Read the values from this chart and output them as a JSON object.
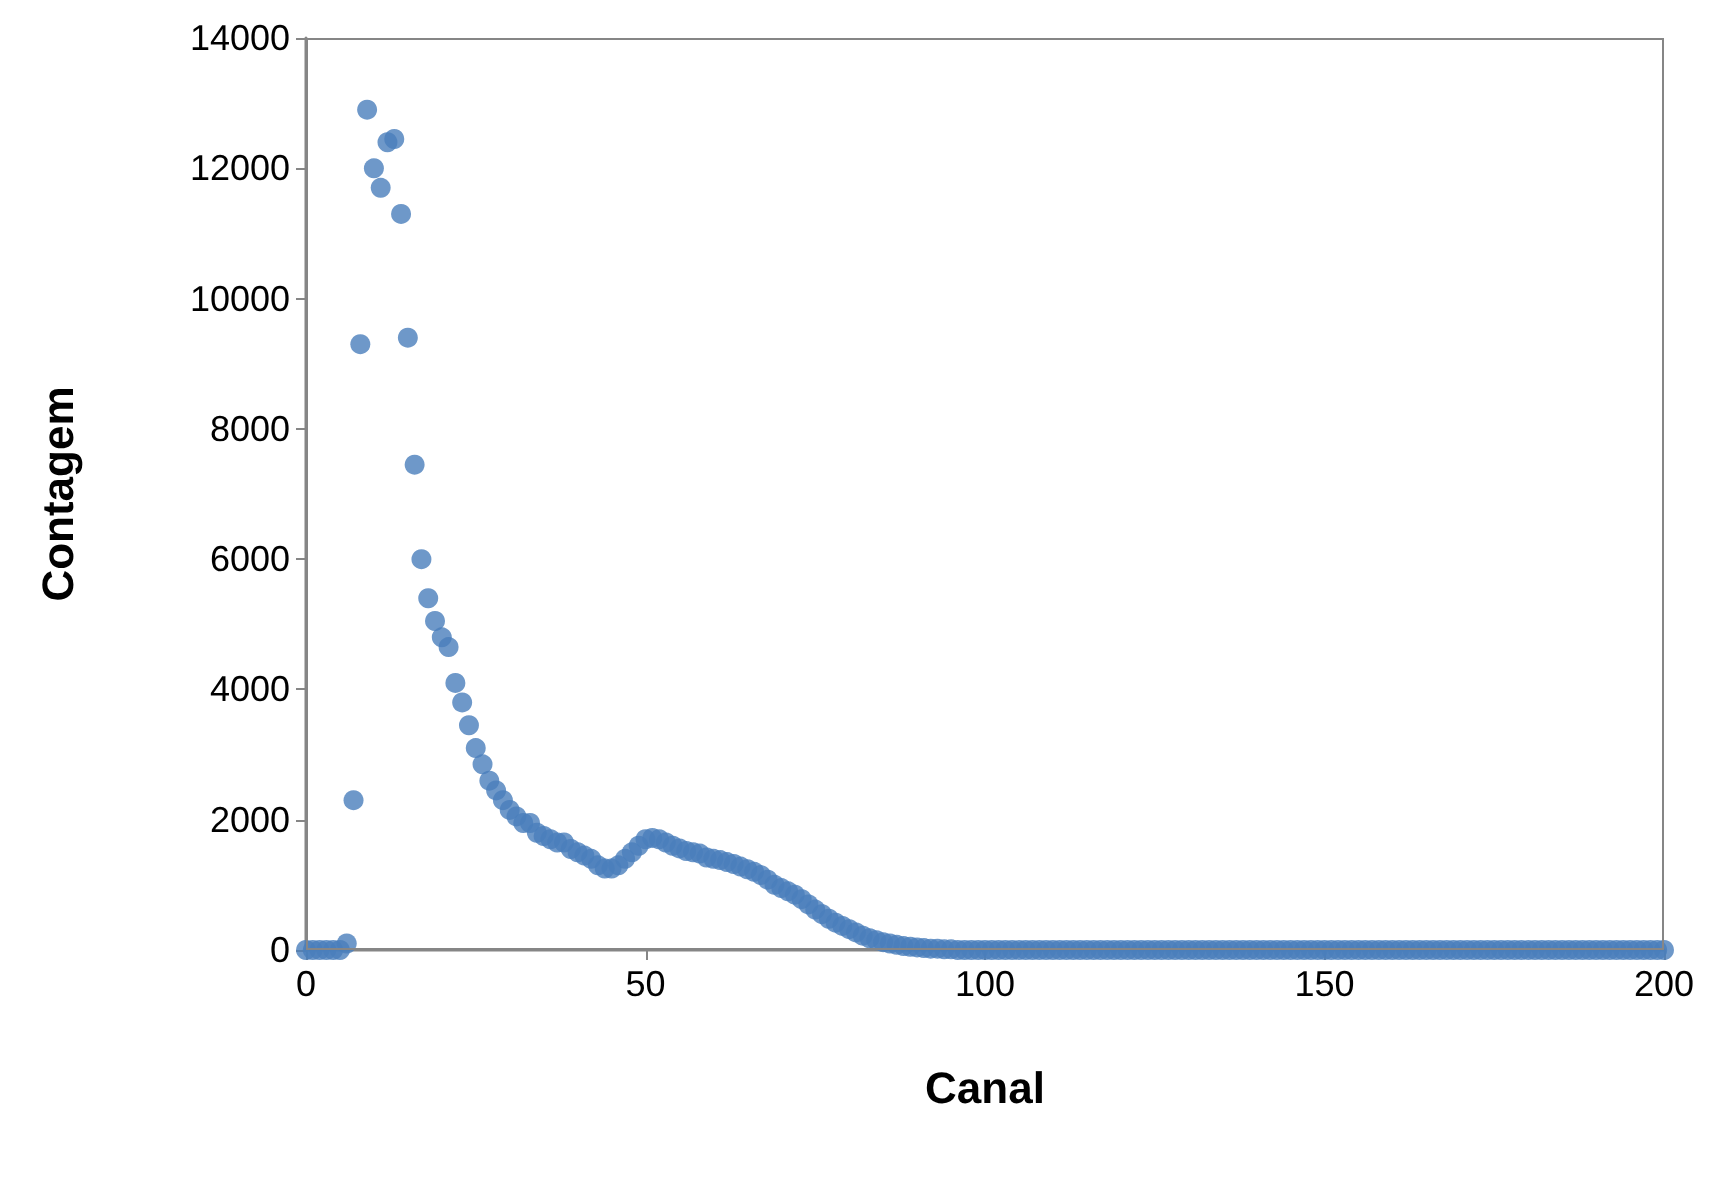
{
  "chart_data": {
    "type": "scatter",
    "xlabel": "Canal",
    "ylabel": "Contagem",
    "xlim": [
      0,
      200
    ],
    "xticks": [
      0,
      50,
      100,
      150,
      200
    ],
    "ylim": [
      0,
      14000
    ],
    "yticks": [
      0,
      2000,
      4000,
      6000,
      8000,
      10000,
      12000,
      14000
    ],
    "marker": "circle",
    "series": [
      {
        "color": "#4a7ebb",
        "x": [
          0,
          1,
          2,
          3,
          4,
          5,
          6,
          7,
          8,
          9,
          10,
          11,
          12,
          13,
          14,
          15,
          16,
          17,
          18,
          19,
          20,
          21,
          22,
          23,
          24,
          25,
          26,
          27,
          28,
          29,
          30,
          31,
          32,
          33,
          34,
          35,
          36,
          37,
          38,
          39,
          40,
          41,
          42,
          43,
          44,
          45,
          46,
          47,
          48,
          49,
          50,
          51,
          52,
          53,
          54,
          55,
          56,
          57,
          58,
          59,
          60,
          61,
          62,
          63,
          64,
          65,
          66,
          67,
          68,
          69,
          70,
          71,
          72,
          73,
          74,
          75,
          76,
          77,
          78,
          79,
          80,
          81,
          82,
          83,
          84,
          85,
          86,
          87,
          88,
          89,
          90,
          91,
          92,
          93,
          94,
          95,
          96,
          97,
          98,
          99,
          100,
          101,
          102,
          103,
          104,
          105,
          106,
          107,
          108,
          109,
          110,
          111,
          112,
          113,
          114,
          115,
          116,
          117,
          118,
          119,
          120,
          121,
          122,
          123,
          124,
          125,
          126,
          127,
          128,
          129,
          130,
          131,
          132,
          133,
          134,
          135,
          136,
          137,
          138,
          139,
          140,
          141,
          142,
          143,
          144,
          145,
          146,
          147,
          148,
          149,
          150,
          151,
          152,
          153,
          154,
          155,
          156,
          157,
          158,
          159,
          160,
          161,
          162,
          163,
          164,
          165,
          166,
          167,
          168,
          169,
          170,
          171,
          172,
          173,
          174,
          175,
          176,
          177,
          178,
          179,
          180,
          181,
          182,
          183,
          184,
          185,
          186,
          187,
          188,
          189,
          190,
          191,
          192,
          193,
          194,
          195,
          196,
          197,
          198,
          199,
          200
        ],
        "values": [
          0,
          0,
          0,
          0,
          0,
          0,
          100,
          2300,
          9300,
          12900,
          12000,
          11700,
          12400,
          12450,
          11300,
          9400,
          7450,
          6000,
          5400,
          5050,
          4800,
          4650,
          4100,
          3800,
          3450,
          3100,
          2850,
          2600,
          2450,
          2300,
          2150,
          2050,
          1950,
          1950,
          1800,
          1750,
          1700,
          1650,
          1650,
          1550,
          1500,
          1450,
          1400,
          1300,
          1250,
          1250,
          1300,
          1400,
          1500,
          1600,
          1700,
          1720,
          1700,
          1650,
          1600,
          1560,
          1520,
          1500,
          1480,
          1420,
          1400,
          1380,
          1350,
          1320,
          1280,
          1240,
          1200,
          1150,
          1080,
          1000,
          950,
          900,
          850,
          780,
          700,
          620,
          550,
          480,
          420,
          370,
          320,
          270,
          220,
          180,
          150,
          120,
          100,
          80,
          60,
          50,
          40,
          30,
          20,
          20,
          10,
          10,
          0,
          0,
          0,
          0,
          0,
          0,
          0,
          0,
          0,
          0,
          0,
          0,
          0,
          0,
          0,
          0,
          0,
          0,
          0,
          0,
          0,
          0,
          0,
          0,
          0,
          0,
          0,
          0,
          0,
          0,
          0,
          0,
          0,
          0,
          0,
          0,
          0,
          0,
          0,
          0,
          0,
          0,
          0,
          0,
          0,
          0,
          0,
          0,
          0,
          0,
          0,
          0,
          0,
          0,
          0,
          0,
          0,
          0,
          0,
          0,
          0,
          0,
          0,
          0,
          0,
          0,
          0,
          0,
          0,
          0,
          0,
          0,
          0,
          0,
          0,
          0,
          0,
          0,
          0,
          0,
          0,
          0,
          0,
          0,
          0,
          0,
          0,
          0,
          0,
          0,
          0,
          0,
          0,
          0,
          0,
          0,
          0,
          0,
          0,
          0,
          0,
          0,
          0,
          0,
          0
        ]
      }
    ]
  }
}
